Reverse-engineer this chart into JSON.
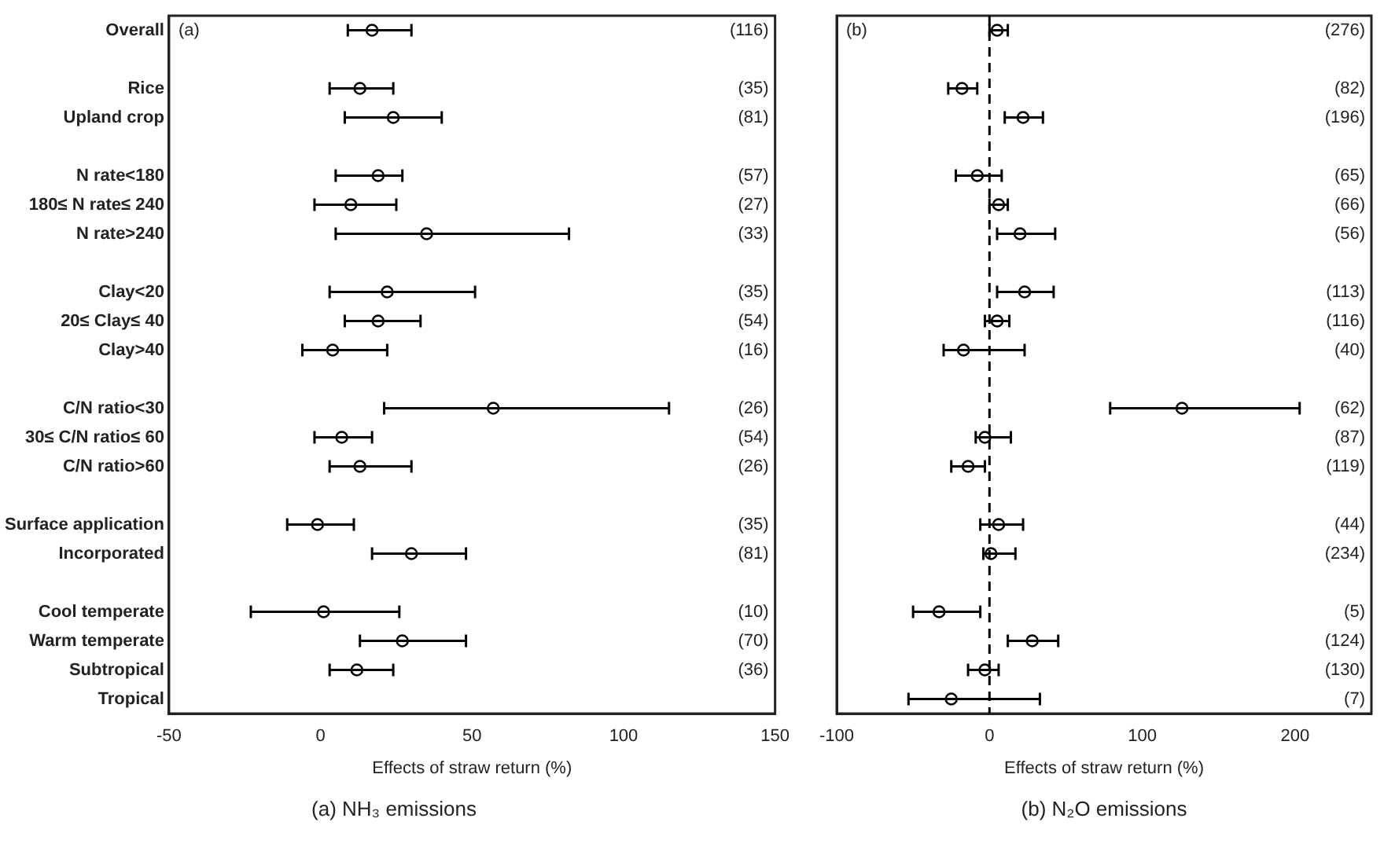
{
  "chart_data": [
    {
      "type": "scatter",
      "orientation": "horizontal",
      "title": "(a) NH₃ emissions",
      "xlabel": "Effects of straw return (%)",
      "categories": [
        "Overall",
        null,
        "Rice",
        "Upland crop",
        null,
        "N rate<180",
        "180≤ N rate≤ 240",
        "N rate>240",
        null,
        "Clay<20",
        "20≤ Clay≤ 40",
        "Clay>40",
        null,
        "C/N ratio<30",
        "30≤ C/N ratio≤ 60",
        "C/N ratio>60",
        null,
        "Surface application",
        "Incorporated",
        null,
        "Cool temperate",
        "Warm temperate",
        "Subtropical",
        "Tropical"
      ],
      "series": [
        {
          "color": "#000000",
          "values": [
            17,
            null,
            13,
            24,
            null,
            19,
            10,
            35,
            null,
            22,
            19,
            4,
            null,
            57,
            7,
            13,
            null,
            -1,
            30,
            null,
            1,
            27,
            12,
            null
          ],
          "errors": [
            [
              9,
              30
            ],
            null,
            [
              3,
              24
            ],
            [
              8,
              40
            ],
            null,
            [
              5,
              27
            ],
            [
              -2,
              25
            ],
            [
              5,
              82
            ],
            null,
            [
              3,
              51
            ],
            [
              8,
              33
            ],
            [
              -6,
              22
            ],
            null,
            [
              21,
              115
            ],
            [
              -2,
              17
            ],
            [
              3,
              30
            ],
            null,
            [
              -11,
              11
            ],
            [
              17,
              48
            ],
            null,
            [
              -23,
              26
            ],
            [
              13,
              48
            ],
            [
              3,
              24
            ],
            null
          ]
        }
      ],
      "xlim": [
        -50,
        150
      ],
      "xticks": [
        -50,
        0,
        50,
        100,
        150
      ],
      "marker": "circle",
      "grid": false,
      "legend": false,
      "annotations": [
        "(a)",
        "(116)",
        "(35)",
        "(81)",
        "(57)",
        "(27)",
        "(33)",
        "(35)",
        "(54)",
        "(16)",
        "(26)",
        "(54)",
        "(26)",
        "(35)",
        "(81)",
        "(10)",
        "(70)",
        "(36)"
      ]
    },
    {
      "type": "scatter",
      "orientation": "horizontal",
      "title": "(b) N₂O emissions",
      "xlabel": "Effects of straw return (%)",
      "categories": [
        null,
        null,
        null,
        null,
        null,
        null,
        null,
        null,
        null,
        null,
        null,
        null,
        null,
        null,
        null,
        null,
        null,
        null,
        null,
        null,
        null,
        null,
        null,
        null
      ],
      "series": [
        {
          "color": "#000000",
          "values": [
            5,
            null,
            -18,
            22,
            null,
            -8,
            6,
            20,
            null,
            23,
            5,
            -17,
            null,
            126,
            -3,
            -14,
            null,
            6,
            1,
            null,
            -33,
            28,
            -3,
            -25
          ],
          "errors": [
            [
              0,
              12
            ],
            null,
            [
              -27,
              -8
            ],
            [
              10,
              35
            ],
            null,
            [
              -22,
              8
            ],
            [
              0,
              12
            ],
            [
              5,
              43
            ],
            null,
            [
              5,
              42
            ],
            [
              -3,
              13
            ],
            [
              -30,
              23
            ],
            null,
            [
              79,
              203
            ],
            [
              -9,
              14
            ],
            [
              -25,
              -3
            ],
            null,
            [
              -6,
              22
            ],
            [
              -4,
              17
            ],
            null,
            [
              -50,
              -6
            ],
            [
              12,
              45
            ],
            [
              -14,
              6
            ],
            [
              -53,
              33
            ]
          ]
        }
      ],
      "xlim": [
        -100,
        250
      ],
      "xticks": [
        -100,
        0,
        100,
        200
      ],
      "marker": "circle",
      "grid": false,
      "legend": false,
      "tick_labels": "x",
      "ref_lines": [
        {
          "axis": "x",
          "value": 0,
          "line_style": "dashed",
          "color": "#000000"
        }
      ],
      "annotations": [
        "(b)",
        "(276)",
        "(82)",
        "(196)",
        "(65)",
        "(66)",
        "(56)",
        "(113)",
        "(116)",
        "(40)",
        "(62)",
        "(87)",
        "(119)",
        "(44)",
        "(234)",
        "(5)",
        "(124)",
        "(130)",
        "(7)"
      ]
    }
  ]
}
